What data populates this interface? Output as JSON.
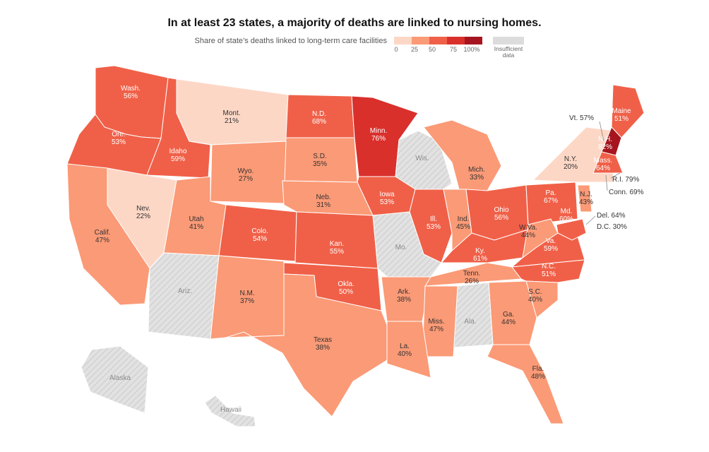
{
  "title": "In at least 23 states, a majority of deaths are linked to nursing homes.",
  "subtitle": "Share of state’s deaths linked to long-term care facilities",
  "legend": {
    "ticks": [
      "0",
      "25",
      "50",
      "75",
      "100%"
    ],
    "colors": [
      "#fdd7c6",
      "#fb9a76",
      "#f06048",
      "#d9302c",
      "#a6151f"
    ],
    "insufficient_label": "Insufficient data",
    "insufficient_color": "#dcdcdc"
  },
  "states": [
    {
      "name": "Wash.",
      "value": "56%",
      "pct": 56
    },
    {
      "name": "Ore.",
      "value": "53%",
      "pct": 53
    },
    {
      "name": "Idaho",
      "value": "59%",
      "pct": 59
    },
    {
      "name": "Mont.",
      "value": "21%",
      "pct": 21
    },
    {
      "name": "N.D.",
      "value": "68%",
      "pct": 68
    },
    {
      "name": "Minn.",
      "value": "76%",
      "pct": 76
    },
    {
      "name": "Wis.",
      "value": "",
      "pct": null
    },
    {
      "name": "Mich.",
      "value": "33%",
      "pct": 33
    },
    {
      "name": "S.D.",
      "value": "35%",
      "pct": 35
    },
    {
      "name": "Wyo.",
      "value": "27%",
      "pct": 27
    },
    {
      "name": "Nev.",
      "value": "22%",
      "pct": 22
    },
    {
      "name": "Calif.",
      "value": "47%",
      "pct": 47
    },
    {
      "name": "Utah",
      "value": "41%",
      "pct": 41
    },
    {
      "name": "Colo.",
      "value": "54%",
      "pct": 54
    },
    {
      "name": "Neb.",
      "value": "31%",
      "pct": 31
    },
    {
      "name": "Iowa",
      "value": "53%",
      "pct": 53
    },
    {
      "name": "Ill.",
      "value": "53%",
      "pct": 53
    },
    {
      "name": "Ind.",
      "value": "45%",
      "pct": 45
    },
    {
      "name": "Ohio",
      "value": "56%",
      "pct": 56
    },
    {
      "name": "Pa.",
      "value": "67%",
      "pct": 67
    },
    {
      "name": "N.Y.",
      "value": "20%",
      "pct": 20
    },
    {
      "name": "Maine",
      "value": "51%",
      "pct": 51
    },
    {
      "name": "N.H.",
      "value": "82%",
      "pct": 82
    },
    {
      "name": "Mass.",
      "value": "64%",
      "pct": 64
    },
    {
      "name": "Kan.",
      "value": "55%",
      "pct": 55
    },
    {
      "name": "Mo.",
      "value": "",
      "pct": null
    },
    {
      "name": "Ky.",
      "value": "61%",
      "pct": 61
    },
    {
      "name": "W.Va.",
      "value": "44%",
      "pct": 44
    },
    {
      "name": "Va.",
      "value": "59%",
      "pct": 59
    },
    {
      "name": "Md.",
      "value": "60%",
      "pct": 60
    },
    {
      "name": "N.J.",
      "value": "43%",
      "pct": 43
    },
    {
      "name": "Ariz.",
      "value": "",
      "pct": null
    },
    {
      "name": "N.M.",
      "value": "37%",
      "pct": 37
    },
    {
      "name": "Okla.",
      "value": "50%",
      "pct": 50
    },
    {
      "name": "Ark.",
      "value": "38%",
      "pct": 38
    },
    {
      "name": "Tenn.",
      "value": "26%",
      "pct": 26
    },
    {
      "name": "N.C.",
      "value": "51%",
      "pct": 51
    },
    {
      "name": "S.C.",
      "value": "40%",
      "pct": 40
    },
    {
      "name": "Ga.",
      "value": "44%",
      "pct": 44
    },
    {
      "name": "Ala.",
      "value": "",
      "pct": null
    },
    {
      "name": "Miss.",
      "value": "47%",
      "pct": 47
    },
    {
      "name": "La.",
      "value": "40%",
      "pct": 40
    },
    {
      "name": "Texas",
      "value": "38%",
      "pct": 38
    },
    {
      "name": "Fla.",
      "value": "48%",
      "pct": 48
    },
    {
      "name": "Alaska",
      "value": "",
      "pct": null
    },
    {
      "name": "Hawaii",
      "value": "",
      "pct": null
    }
  ],
  "callouts": [
    {
      "name": "Vt.",
      "value": "57%",
      "pct": 57
    },
    {
      "name": "R.I.",
      "value": "79%",
      "pct": 79
    },
    {
      "name": "Conn.",
      "value": "69%",
      "pct": 69
    },
    {
      "name": "Del.",
      "value": "64%",
      "pct": 64
    },
    {
      "name": "D.C.",
      "value": "30%",
      "pct": 30
    }
  ]
}
